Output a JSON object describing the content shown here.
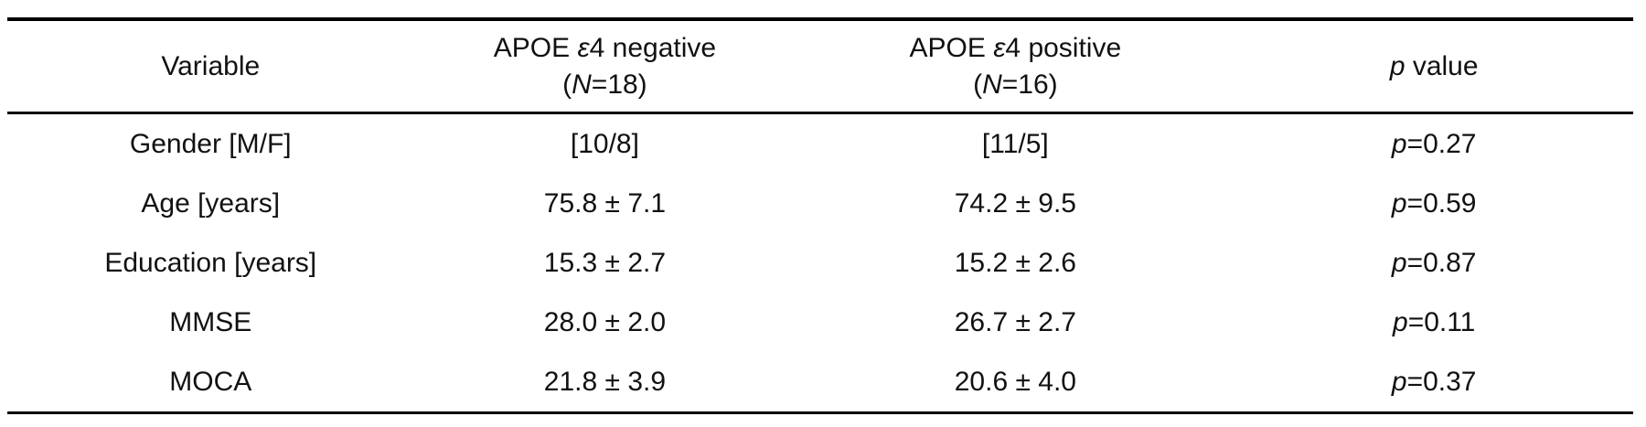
{
  "table": {
    "header": {
      "variable": "Variable",
      "apoe_negative": {
        "pre": "APOE ",
        "italic": "ε",
        "post": "4 negative",
        "n_pre": "(",
        "n_italic": "N",
        "n_post": "=18)"
      },
      "apoe_positive": {
        "pre": "APOE ",
        "italic": "ε",
        "post": "4 positive",
        "n_pre": "(",
        "n_italic": "N",
        "n_post": "=16)"
      },
      "p_value": {
        "italic": "p",
        "post": " value"
      }
    },
    "rows": [
      {
        "variable": "Gender [M/F]",
        "negative": "[10/8]",
        "positive": "[11/5]",
        "p": {
          "italic": "p",
          "value": "=0.27"
        }
      },
      {
        "variable": "Age [years]",
        "negative": "75.8 ± 7.1",
        "positive": "74.2 ± 9.5",
        "p": {
          "italic": "p",
          "value": "=0.59"
        }
      },
      {
        "variable": "Education [years]",
        "negative": "15.3 ± 2.7",
        "positive": "15.2 ± 2.6",
        "p": {
          "italic": "p",
          "value": "=0.87"
        }
      },
      {
        "variable": "MMSE",
        "negative": "28.0 ± 2.0",
        "positive": "26.7 ± 2.7",
        "p": {
          "italic": "p",
          "value": "=0.11"
        }
      },
      {
        "variable": "MOCA",
        "negative": "21.8 ± 3.9",
        "positive": "20.6 ± 4.0",
        "p": {
          "italic": "p",
          "value": "=0.37"
        }
      }
    ]
  }
}
